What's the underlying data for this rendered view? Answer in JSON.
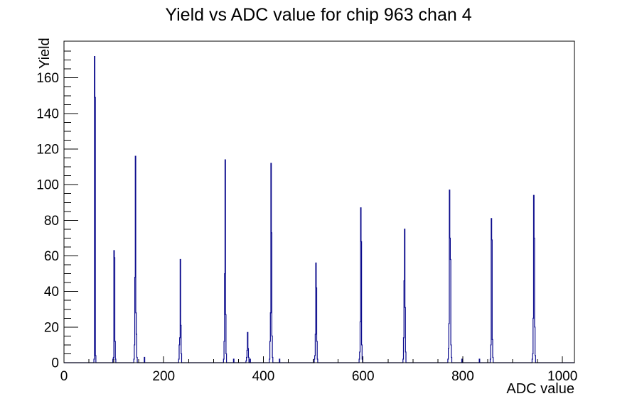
{
  "chart_data": {
    "type": "histogram-line",
    "title": "Yield vs ADC value for chip 963 chan 4",
    "xlabel": "ADC value",
    "ylabel": "Yield",
    "xlim": [
      0,
      1024
    ],
    "ylim": [
      0,
      180.6
    ],
    "x_major_ticks": [
      0,
      200,
      400,
      600,
      800,
      1000
    ],
    "x_minor_step": 50,
    "y_major_ticks": [
      0,
      20,
      40,
      60,
      80,
      100,
      120,
      140,
      160
    ],
    "y_minor_step": 5,
    "grid": false,
    "legend": false,
    "line_color": "#0a0a8c",
    "axis_color": "#000000",
    "background_color": "#ffffff",
    "bin_width_adc": 1,
    "bins": [
      [
        60,
        2
      ],
      [
        61,
        172
      ],
      [
        62,
        149
      ],
      [
        63,
        4
      ],
      [
        98,
        2
      ],
      [
        99,
        3
      ],
      [
        100,
        63
      ],
      [
        101,
        59
      ],
      [
        102,
        12
      ],
      [
        103,
        2
      ],
      [
        140,
        2
      ],
      [
        141,
        10
      ],
      [
        142,
        48
      ],
      [
        143,
        116
      ],
      [
        144,
        28
      ],
      [
        145,
        16
      ],
      [
        146,
        3
      ],
      [
        161,
        3
      ],
      [
        230,
        2
      ],
      [
        231,
        10
      ],
      [
        232,
        14
      ],
      [
        233,
        58
      ],
      [
        234,
        21
      ],
      [
        235,
        5
      ],
      [
        320,
        2
      ],
      [
        321,
        12
      ],
      [
        322,
        50
      ],
      [
        323,
        114
      ],
      [
        324,
        27
      ],
      [
        325,
        5
      ],
      [
        340,
        2
      ],
      [
        365,
        1
      ],
      [
        366,
        3
      ],
      [
        367,
        7
      ],
      [
        368,
        17
      ],
      [
        369,
        8
      ],
      [
        370,
        3
      ],
      [
        373,
        2
      ],
      [
        412,
        2
      ],
      [
        413,
        12
      ],
      [
        414,
        28
      ],
      [
        415,
        112
      ],
      [
        416,
        73
      ],
      [
        417,
        15
      ],
      [
        418,
        3
      ],
      [
        432,
        2
      ],
      [
        502,
        2
      ],
      [
        503,
        4
      ],
      [
        504,
        16
      ],
      [
        505,
        56
      ],
      [
        506,
        42
      ],
      [
        507,
        12
      ],
      [
        508,
        2
      ],
      [
        592,
        2
      ],
      [
        593,
        6
      ],
      [
        594,
        23
      ],
      [
        595,
        87
      ],
      [
        596,
        68
      ],
      [
        597,
        10
      ],
      [
        598,
        2
      ],
      [
        680,
        2
      ],
      [
        681,
        14
      ],
      [
        682,
        46
      ],
      [
        683,
        75
      ],
      [
        684,
        31
      ],
      [
        685,
        6
      ],
      [
        770,
        2
      ],
      [
        771,
        8
      ],
      [
        772,
        22
      ],
      [
        773,
        97
      ],
      [
        774,
        70
      ],
      [
        775,
        58
      ],
      [
        776,
        10
      ],
      [
        777,
        3
      ],
      [
        798,
        2
      ],
      [
        833,
        2
      ],
      [
        855,
        2
      ],
      [
        856,
        10
      ],
      [
        857,
        81
      ],
      [
        858,
        69
      ],
      [
        859,
        13
      ],
      [
        860,
        3
      ],
      [
        939,
        2
      ],
      [
        940,
        5
      ],
      [
        941,
        25
      ],
      [
        942,
        94
      ],
      [
        943,
        70
      ],
      [
        944,
        20
      ],
      [
        945,
        4
      ]
    ],
    "peak_summary": [
      {
        "adc": 61,
        "yield": 172
      },
      {
        "adc": 100,
        "yield": 63
      },
      {
        "adc": 143,
        "yield": 116
      },
      {
        "adc": 233,
        "yield": 58
      },
      {
        "adc": 323,
        "yield": 114
      },
      {
        "adc": 368,
        "yield": 17
      },
      {
        "adc": 415,
        "yield": 112
      },
      {
        "adc": 505,
        "yield": 56
      },
      {
        "adc": 595,
        "yield": 87
      },
      {
        "adc": 683,
        "yield": 75
      },
      {
        "adc": 773,
        "yield": 97
      },
      {
        "adc": 857,
        "yield": 81
      },
      {
        "adc": 942,
        "yield": 94
      }
    ]
  }
}
